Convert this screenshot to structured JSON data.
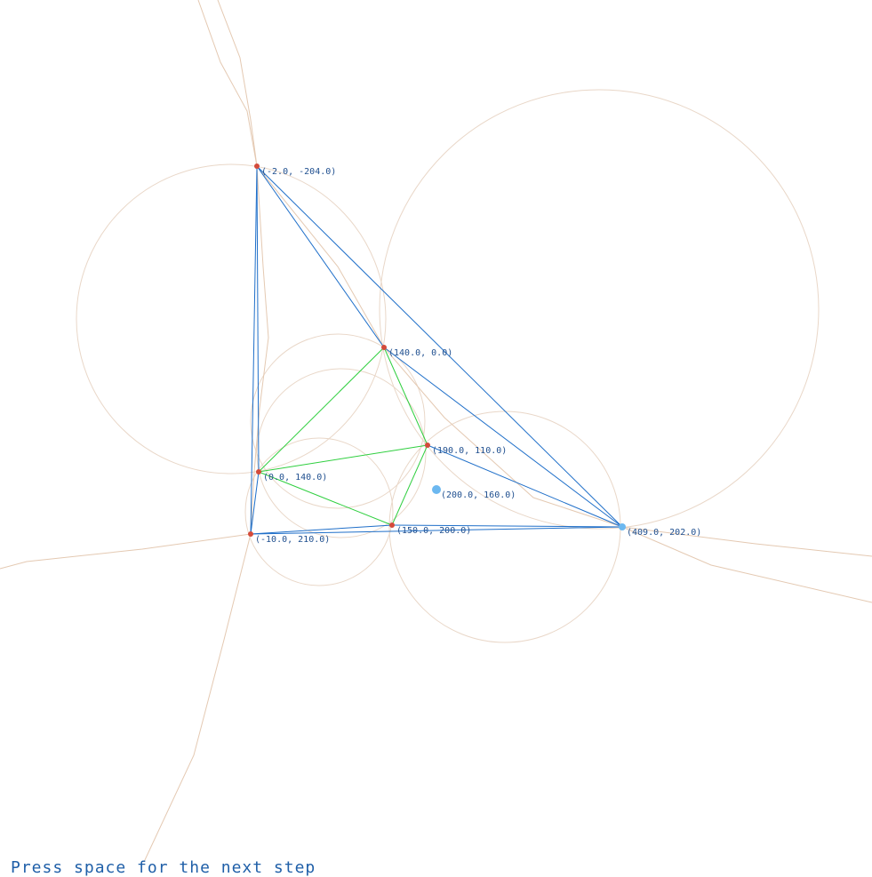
{
  "instruction": "Press space for the next step",
  "colors": {
    "circle": "#e9d7c8",
    "voronoi": "#e4c9b2",
    "hull_edge": "#1f6fc9",
    "inner_edge": "#2fcf3f",
    "vertex": "#d44a3a",
    "current_point": "#6cb8f0",
    "label": "#1f4f8f"
  },
  "points": [
    {
      "id": "p1",
      "label": "(-2.0, -204.0)"
    },
    {
      "id": "p2",
      "label": "(140.0, 0.0)"
    },
    {
      "id": "p3",
      "label": "(190.0, 110.0)"
    },
    {
      "id": "p4",
      "label": "(0.0, 140.0)"
    },
    {
      "id": "p5",
      "label": "(150.0, 200.0)"
    },
    {
      "id": "p6",
      "label": "(-10.0, 210.0)"
    },
    {
      "id": "p7",
      "label": "(409.0, 202.0)"
    }
  ],
  "current_point": {
    "label": "(200.0, 160.0)"
  },
  "hull_edges": [
    [
      "p1",
      "p6"
    ],
    [
      "p1",
      "p4"
    ],
    [
      "p1",
      "p2"
    ],
    [
      "p1",
      "p7"
    ],
    [
      "p2",
      "p7"
    ],
    [
      "p3",
      "p7"
    ],
    [
      "p5",
      "p7"
    ],
    [
      "p6",
      "p7"
    ],
    [
      "p6",
      "p4"
    ],
    [
      "p6",
      "p5"
    ]
  ],
  "inner_edges": [
    [
      "p4",
      "p2"
    ],
    [
      "p2",
      "p3"
    ],
    [
      "p4",
      "p3"
    ],
    [
      "p4",
      "p5"
    ],
    [
      "p3",
      "p5"
    ]
  ]
}
